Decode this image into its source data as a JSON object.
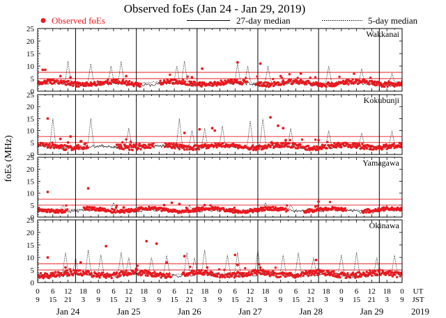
{
  "chart_data": {
    "type": "scatter",
    "title": "Observed foEs (Jan 24 - Jan 29, 2019)",
    "ylabel": "foEs (MHz)",
    "ylim": [
      0,
      25
    ],
    "yticks": [
      0,
      5,
      10,
      15,
      20,
      25
    ],
    "xlim_hours_ut": [
      0,
      144
    ],
    "legend": {
      "observed": "Observed foEs",
      "median27": "27-day median",
      "median5": "5-day median"
    },
    "x_time_labels": {
      "ut": "UT",
      "jst": "JST"
    },
    "ut_ticks": [
      "0",
      "6",
      "12",
      "18",
      "0",
      "6",
      "12",
      "18",
      "0",
      "6",
      "12",
      "18",
      "0",
      "6",
      "12",
      "18",
      "0",
      "6",
      "12",
      "18",
      "0",
      "6",
      "12",
      "18",
      "0"
    ],
    "jst_ticks": [
      "9",
      "15",
      "21",
      "3",
      "9",
      "15",
      "21",
      "3",
      "9",
      "15",
      "21",
      "3",
      "9",
      "15",
      "21",
      "3",
      "9",
      "15",
      "21",
      "3",
      "9",
      "15",
      "21",
      "3",
      "9"
    ],
    "date_labels": [
      "Jan 24",
      "Jan 25",
      "Jan 26",
      "Jan 27",
      "Jan 28",
      "Jan 29"
    ],
    "year_label": "2019",
    "day_boundaries_hours_ut": [
      15,
      39,
      63,
      87,
      111,
      135
    ],
    "reference_lines_mhz": [
      5,
      7.5
    ],
    "stations": [
      {
        "name": "Wakkanai",
        "base": 3.2,
        "noise": 0.9,
        "seed": 11,
        "gaps": [
          [
            41,
            48
          ],
          [
            83,
            86
          ]
        ],
        "outliers": [
          [
            2,
            8.5
          ],
          [
            3,
            8.5
          ],
          [
            9,
            6
          ],
          [
            13,
            5.5
          ],
          [
            35,
            6
          ],
          [
            61,
            5.5
          ],
          [
            65,
            9
          ],
          [
            79,
            11.5
          ],
          [
            88,
            11
          ],
          [
            96,
            6
          ],
          [
            104,
            7
          ]
        ],
        "spikes": [
          [
            12,
            12
          ],
          [
            21,
            11
          ],
          [
            29,
            10
          ],
          [
            33,
            12
          ],
          [
            55,
            10
          ],
          [
            58,
            12
          ],
          [
            79,
            11
          ],
          [
            83,
            10
          ],
          [
            91,
            10
          ],
          [
            115,
            10
          ],
          [
            128,
            9
          ],
          [
            140,
            7
          ]
        ]
      },
      {
        "name": "Kokubunji",
        "base": 3.4,
        "noise": 1.0,
        "seed": 23,
        "gaps": [
          [
            20,
            31
          ],
          [
            46,
            50
          ]
        ],
        "outliers": [
          [
            4,
            15
          ],
          [
            9,
            6.5
          ],
          [
            12,
            5
          ],
          [
            13,
            7.5
          ],
          [
            38,
            4
          ],
          [
            58,
            9
          ],
          [
            64,
            10.5
          ],
          [
            69,
            11
          ],
          [
            70,
            10
          ],
          [
            92,
            15.5
          ],
          [
            95,
            12
          ],
          [
            97,
            11
          ],
          [
            98,
            6
          ],
          [
            111,
            6
          ]
        ],
        "spikes": [
          [
            6,
            15
          ],
          [
            21,
            15
          ],
          [
            36,
            11
          ],
          [
            56,
            15
          ],
          [
            61,
            10
          ],
          [
            66,
            11
          ],
          [
            73,
            12
          ],
          [
            84,
            14
          ],
          [
            89,
            15
          ],
          [
            100,
            11
          ],
          [
            115,
            10
          ],
          [
            128,
            9
          ],
          [
            140,
            10
          ]
        ]
      },
      {
        "name": "Yamagawa",
        "base": 3.0,
        "noise": 0.7,
        "seed": 37,
        "gaps": [
          [
            12,
            18
          ],
          [
            99,
            105
          ],
          [
            122,
            128
          ]
        ],
        "outliers": [
          [
            4,
            10.5
          ],
          [
            20,
            12
          ],
          [
            34,
            4
          ],
          [
            50,
            5
          ],
          [
            53,
            6
          ],
          [
            56,
            5.5
          ],
          [
            63,
            4
          ],
          [
            66,
            5
          ],
          [
            111,
            6.5
          ]
        ],
        "spikes": [
          [
            10,
            5
          ],
          [
            30,
            6
          ],
          [
            60,
            5
          ],
          [
            90,
            6
          ],
          [
            100,
            5
          ],
          [
            138,
            5
          ]
        ]
      },
      {
        "name": "Okinawa",
        "base": 3.4,
        "noise": 1.1,
        "seed": 53,
        "gaps": [
          [
            53,
            57
          ]
        ],
        "outliers": [
          [
            4,
            10
          ],
          [
            11,
            6
          ],
          [
            17,
            8
          ],
          [
            27,
            14.5
          ],
          [
            39,
            5.5
          ],
          [
            43,
            16.5
          ],
          [
            47,
            15.5
          ],
          [
            51,
            8
          ],
          [
            58,
            10.5
          ],
          [
            67,
            6
          ],
          [
            78,
            11
          ],
          [
            79,
            7
          ],
          [
            88,
            6
          ],
          [
            89,
            5
          ],
          [
            110,
            9
          ]
        ],
        "spikes": [
          [
            11,
            12
          ],
          [
            15,
            10
          ],
          [
            20,
            13
          ],
          [
            25,
            11
          ],
          [
            33,
            12
          ],
          [
            36,
            10
          ],
          [
            45,
            10
          ],
          [
            51,
            11
          ],
          [
            59,
            12
          ],
          [
            62,
            10
          ],
          [
            66,
            13
          ],
          [
            75,
            11
          ],
          [
            79,
            12
          ],
          [
            87,
            13
          ],
          [
            97,
            11
          ],
          [
            103,
            12
          ],
          [
            109,
            10
          ],
          [
            120,
            11
          ],
          [
            126,
            12
          ],
          [
            134,
            10
          ],
          [
            141,
            11
          ]
        ]
      }
    ]
  }
}
